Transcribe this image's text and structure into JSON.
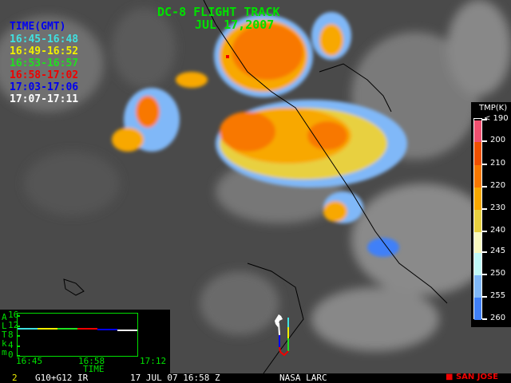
{
  "title": {
    "line1": "DC-8 FLIGHT TRACK",
    "line2": "JUL 17,2007"
  },
  "time_legend": {
    "header": "TIME(GMT)",
    "entries": [
      {
        "label": "16:45-16:48",
        "color": "#40e0e0"
      },
      {
        "label": "16:49-16:52",
        "color": "#f0f000"
      },
      {
        "label": "16:53-16:57",
        "color": "#20e020"
      },
      {
        "label": "16:58-17:02",
        "color": "#f00000"
      },
      {
        "label": "17:03-17:06",
        "color": "#0000f0"
      },
      {
        "label": "17:07-17:11",
        "color": "#ffffff"
      }
    ]
  },
  "colorbar": {
    "title": "TMP(K)",
    "labels": [
      "< 190",
      "200",
      "210",
      "220",
      "230",
      "240",
      "245",
      "250",
      "255",
      "260"
    ],
    "colors": [
      "#f05070",
      "#f05000",
      "#f87800",
      "#f8a800",
      "#e8d040",
      "#f8f8c0",
      "#c0f8f8",
      "#80b8f8",
      "#4080f8"
    ]
  },
  "altitude_chart": {
    "ylabel_letters": [
      "A",
      "L",
      "T",
      "k",
      "m"
    ],
    "yticks": [
      "16",
      "12",
      "8",
      "4",
      "0"
    ],
    "xticks": [
      "16:45",
      "16:58",
      "17:12"
    ],
    "xlabel": "TIME",
    "altitude_km": 11
  },
  "footer": {
    "frame": "2",
    "sensor": "G10+G12 IR",
    "datetime": "17 JUL 07 16:58 Z",
    "credit": "NASA LARC",
    "marker_label": "SAN JOSE",
    "marker_color": "#f00000"
  }
}
